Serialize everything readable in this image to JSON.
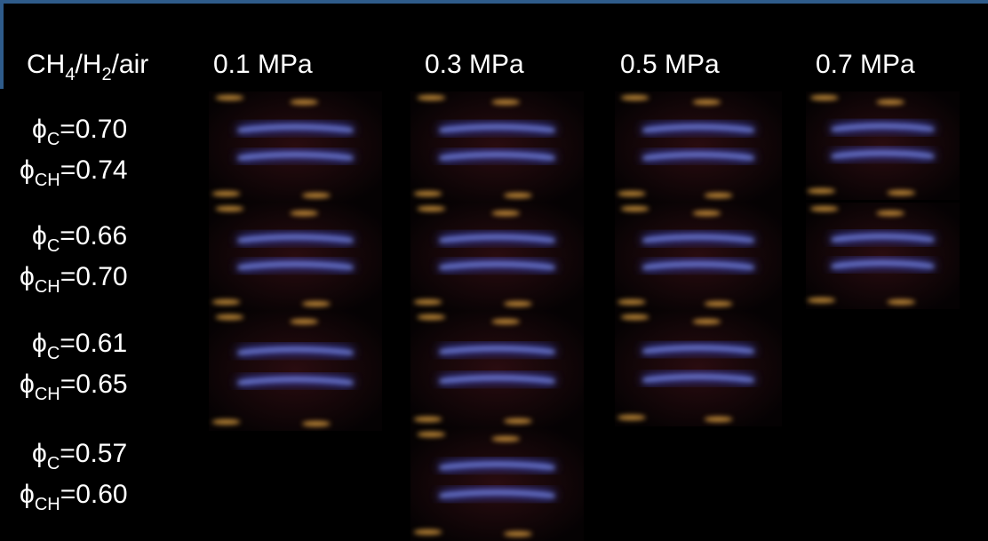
{
  "corner_parts": [
    "CH",
    "4",
    "/H",
    "2",
    "/air"
  ],
  "columns": [
    "0.1 MPa",
    "0.3 MPa",
    "0.5 MPa",
    "0.7 MPa"
  ],
  "rows": [
    {
      "c": {
        "base": "ϕ",
        "sub": "C",
        "rest": "=0.70"
      },
      "ch": {
        "base": "ϕ",
        "sub": "CH",
        "rest": "=0.74"
      }
    },
    {
      "c": {
        "base": "ϕ",
        "sub": "C",
        "rest": "=0.66"
      },
      "ch": {
        "base": "ϕ",
        "sub": "CH",
        "rest": "=0.70"
      }
    },
    {
      "c": {
        "base": "ϕ",
        "sub": "C",
        "rest": "=0.61"
      },
      "ch": {
        "base": "ϕ",
        "sub": "CH",
        "rest": "=0.65"
      }
    },
    {
      "c": {
        "base": "ϕ",
        "sub": "C",
        "rest": "=0.57"
      },
      "ch": {
        "base": "ϕ",
        "sub": "CH",
        "rest": "=0.60"
      }
    }
  ]
}
